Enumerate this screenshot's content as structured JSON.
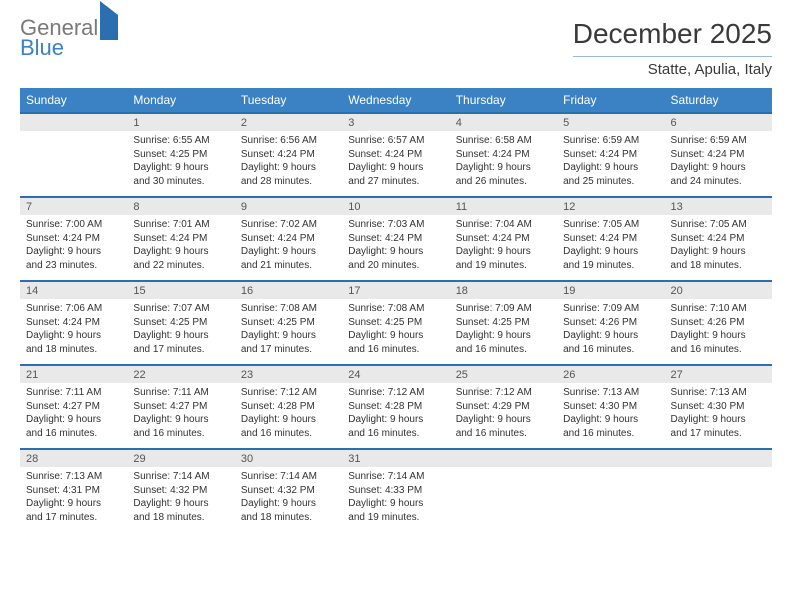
{
  "logo": {
    "line1": "General",
    "line2": "Blue"
  },
  "title": "December 2025",
  "location": "Statte, Apulia, Italy",
  "header_bg": "#3b82c4",
  "rule_color": "#2b6fb0",
  "numrow_bg": "#e9e9e9",
  "weekdays": [
    "Sunday",
    "Monday",
    "Tuesday",
    "Wednesday",
    "Thursday",
    "Friday",
    "Saturday"
  ],
  "weeks": [
    {
      "nums": [
        "",
        "1",
        "2",
        "3",
        "4",
        "5",
        "6"
      ],
      "cells": [
        null,
        {
          "sr": "Sunrise: 6:55 AM",
          "ss": "Sunset: 4:25 PM",
          "d1": "Daylight: 9 hours",
          "d2": "and 30 minutes."
        },
        {
          "sr": "Sunrise: 6:56 AM",
          "ss": "Sunset: 4:24 PM",
          "d1": "Daylight: 9 hours",
          "d2": "and 28 minutes."
        },
        {
          "sr": "Sunrise: 6:57 AM",
          "ss": "Sunset: 4:24 PM",
          "d1": "Daylight: 9 hours",
          "d2": "and 27 minutes."
        },
        {
          "sr": "Sunrise: 6:58 AM",
          "ss": "Sunset: 4:24 PM",
          "d1": "Daylight: 9 hours",
          "d2": "and 26 minutes."
        },
        {
          "sr": "Sunrise: 6:59 AM",
          "ss": "Sunset: 4:24 PM",
          "d1": "Daylight: 9 hours",
          "d2": "and 25 minutes."
        },
        {
          "sr": "Sunrise: 6:59 AM",
          "ss": "Sunset: 4:24 PM",
          "d1": "Daylight: 9 hours",
          "d2": "and 24 minutes."
        }
      ]
    },
    {
      "nums": [
        "7",
        "8",
        "9",
        "10",
        "11",
        "12",
        "13"
      ],
      "cells": [
        {
          "sr": "Sunrise: 7:00 AM",
          "ss": "Sunset: 4:24 PM",
          "d1": "Daylight: 9 hours",
          "d2": "and 23 minutes."
        },
        {
          "sr": "Sunrise: 7:01 AM",
          "ss": "Sunset: 4:24 PM",
          "d1": "Daylight: 9 hours",
          "d2": "and 22 minutes."
        },
        {
          "sr": "Sunrise: 7:02 AM",
          "ss": "Sunset: 4:24 PM",
          "d1": "Daylight: 9 hours",
          "d2": "and 21 minutes."
        },
        {
          "sr": "Sunrise: 7:03 AM",
          "ss": "Sunset: 4:24 PM",
          "d1": "Daylight: 9 hours",
          "d2": "and 20 minutes."
        },
        {
          "sr": "Sunrise: 7:04 AM",
          "ss": "Sunset: 4:24 PM",
          "d1": "Daylight: 9 hours",
          "d2": "and 19 minutes."
        },
        {
          "sr": "Sunrise: 7:05 AM",
          "ss": "Sunset: 4:24 PM",
          "d1": "Daylight: 9 hours",
          "d2": "and 19 minutes."
        },
        {
          "sr": "Sunrise: 7:05 AM",
          "ss": "Sunset: 4:24 PM",
          "d1": "Daylight: 9 hours",
          "d2": "and 18 minutes."
        }
      ]
    },
    {
      "nums": [
        "14",
        "15",
        "16",
        "17",
        "18",
        "19",
        "20"
      ],
      "cells": [
        {
          "sr": "Sunrise: 7:06 AM",
          "ss": "Sunset: 4:24 PM",
          "d1": "Daylight: 9 hours",
          "d2": "and 18 minutes."
        },
        {
          "sr": "Sunrise: 7:07 AM",
          "ss": "Sunset: 4:25 PM",
          "d1": "Daylight: 9 hours",
          "d2": "and 17 minutes."
        },
        {
          "sr": "Sunrise: 7:08 AM",
          "ss": "Sunset: 4:25 PM",
          "d1": "Daylight: 9 hours",
          "d2": "and 17 minutes."
        },
        {
          "sr": "Sunrise: 7:08 AM",
          "ss": "Sunset: 4:25 PM",
          "d1": "Daylight: 9 hours",
          "d2": "and 16 minutes."
        },
        {
          "sr": "Sunrise: 7:09 AM",
          "ss": "Sunset: 4:25 PM",
          "d1": "Daylight: 9 hours",
          "d2": "and 16 minutes."
        },
        {
          "sr": "Sunrise: 7:09 AM",
          "ss": "Sunset: 4:26 PM",
          "d1": "Daylight: 9 hours",
          "d2": "and 16 minutes."
        },
        {
          "sr": "Sunrise: 7:10 AM",
          "ss": "Sunset: 4:26 PM",
          "d1": "Daylight: 9 hours",
          "d2": "and 16 minutes."
        }
      ]
    },
    {
      "nums": [
        "21",
        "22",
        "23",
        "24",
        "25",
        "26",
        "27"
      ],
      "cells": [
        {
          "sr": "Sunrise: 7:11 AM",
          "ss": "Sunset: 4:27 PM",
          "d1": "Daylight: 9 hours",
          "d2": "and 16 minutes."
        },
        {
          "sr": "Sunrise: 7:11 AM",
          "ss": "Sunset: 4:27 PM",
          "d1": "Daylight: 9 hours",
          "d2": "and 16 minutes."
        },
        {
          "sr": "Sunrise: 7:12 AM",
          "ss": "Sunset: 4:28 PM",
          "d1": "Daylight: 9 hours",
          "d2": "and 16 minutes."
        },
        {
          "sr": "Sunrise: 7:12 AM",
          "ss": "Sunset: 4:28 PM",
          "d1": "Daylight: 9 hours",
          "d2": "and 16 minutes."
        },
        {
          "sr": "Sunrise: 7:12 AM",
          "ss": "Sunset: 4:29 PM",
          "d1": "Daylight: 9 hours",
          "d2": "and 16 minutes."
        },
        {
          "sr": "Sunrise: 7:13 AM",
          "ss": "Sunset: 4:30 PM",
          "d1": "Daylight: 9 hours",
          "d2": "and 16 minutes."
        },
        {
          "sr": "Sunrise: 7:13 AM",
          "ss": "Sunset: 4:30 PM",
          "d1": "Daylight: 9 hours",
          "d2": "and 17 minutes."
        }
      ]
    },
    {
      "nums": [
        "28",
        "29",
        "30",
        "31",
        "",
        "",
        ""
      ],
      "cells": [
        {
          "sr": "Sunrise: 7:13 AM",
          "ss": "Sunset: 4:31 PM",
          "d1": "Daylight: 9 hours",
          "d2": "and 17 minutes."
        },
        {
          "sr": "Sunrise: 7:14 AM",
          "ss": "Sunset: 4:32 PM",
          "d1": "Daylight: 9 hours",
          "d2": "and 18 minutes."
        },
        {
          "sr": "Sunrise: 7:14 AM",
          "ss": "Sunset: 4:32 PM",
          "d1": "Daylight: 9 hours",
          "d2": "and 18 minutes."
        },
        {
          "sr": "Sunrise: 7:14 AM",
          "ss": "Sunset: 4:33 PM",
          "d1": "Daylight: 9 hours",
          "d2": "and 19 minutes."
        },
        null,
        null,
        null
      ]
    }
  ]
}
